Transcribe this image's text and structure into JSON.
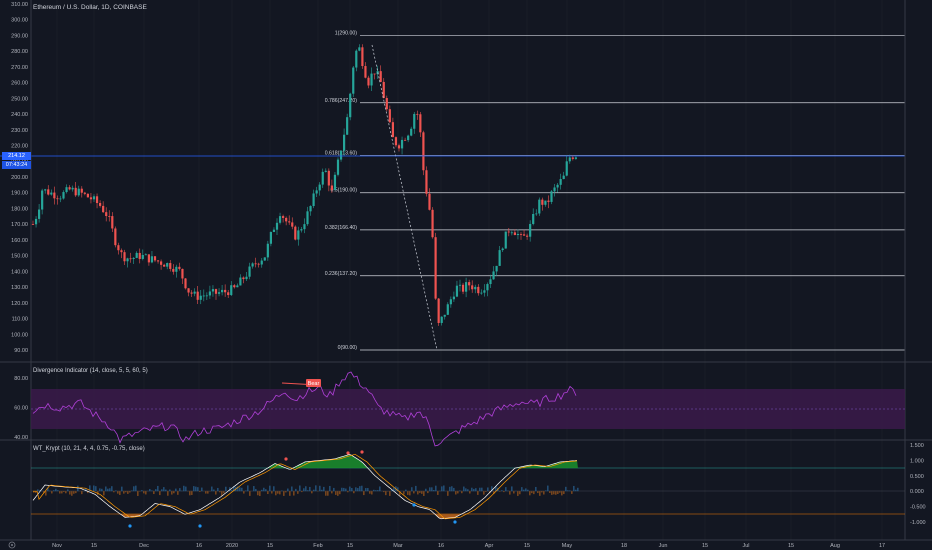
{
  "header": {
    "title": "Ethereum / U.S. Dollar, 1D, COINBASE"
  },
  "price_badge": {
    "price": "214.12",
    "countdown": "07:43:24"
  },
  "main_axis": {
    "labels": [
      "310.00",
      "300.00",
      "290.00",
      "280.00",
      "270.00",
      "260.00",
      "250.00",
      "240.00",
      "230.00",
      "220.00",
      "210.00",
      "200.00",
      "190.00",
      "180.00",
      "170.00",
      "160.00",
      "150.00",
      "140.00",
      "130.00",
      "120.00",
      "110.00",
      "100.00",
      "90.00"
    ]
  },
  "fib_levels": [
    {
      "label": "1(290.00)",
      "value": 290
    },
    {
      "label": "0.786(247.20)",
      "value": 247.2
    },
    {
      "label": "0.618(213.60)",
      "value": 213.6
    },
    {
      "label": "0.5(190.00)",
      "value": 190
    },
    {
      "label": "0.382(166.40)",
      "value": 166.4
    },
    {
      "label": "0.236(137.20)",
      "value": 137.2
    },
    {
      "label": "0(90.00)",
      "value": 90
    }
  ],
  "divergence_indicator": {
    "title": "Divergence Indicator (14, close, 5, 5, 60, 5)",
    "axis_labels": [
      "80.00",
      "60.00",
      "40.00"
    ],
    "bear_label": "Bear"
  },
  "wt_indicator": {
    "title": "WT_Krypt (10, 21, 4, 4, 0.75, -0.75, close)",
    "axis_labels": [
      "1.500",
      "1.000",
      "0.500",
      "0.000",
      "-0.500",
      "-1.000"
    ]
  },
  "time_axis": {
    "labels": [
      "Nov",
      "15",
      "Dec",
      "16",
      "2020",
      "15",
      "Feb",
      "15",
      "Mar",
      "16",
      "Apr",
      "15",
      "May",
      "18",
      "Jun",
      "15",
      "Jul",
      "15",
      "Aug",
      "17"
    ]
  },
  "colors": {
    "background": "#131722",
    "up": "#26a69a",
    "down": "#ef5350",
    "rsi_line": "#b040d8",
    "rsi_band": "#4a1f5e",
    "wt_green": "#1b8a2c",
    "wt_orange": "#b8621b",
    "wt_blue": "#2b6fa8",
    "price_line": "#2962ff"
  },
  "icons": [
    "settings-gear-icon"
  ]
}
